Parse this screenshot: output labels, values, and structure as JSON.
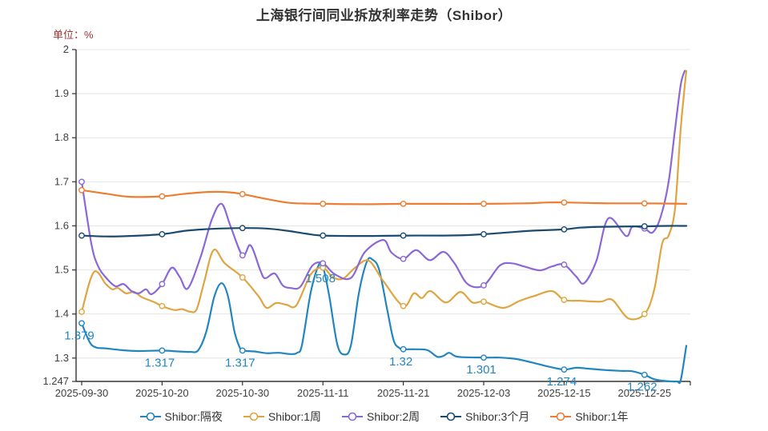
{
  "chart_data": {
    "type": "line",
    "title": "上海银行间同业拆放利率走势（Shibor）",
    "unit_label": "单位：%",
    "ylim": [
      1.247,
      2.0
    ],
    "grid": "horizontal-only",
    "legend_position": "bottom-center",
    "x_tick_labels": [
      "2025-09-30",
      "2025-10-20",
      "2025-10-30",
      "2025-11-11",
      "2025-11-21",
      "2025-12-03",
      "2025-12-15",
      "2025-12-25"
    ],
    "y_tick_labels": [
      "2",
      "1.9",
      "1.8",
      "1.7",
      "1.6",
      "1.5",
      "1.4",
      "1.3",
      "1.247"
    ],
    "y_tick_values": [
      2,
      1.9,
      1.8,
      1.7,
      1.6,
      1.5,
      1.4,
      1.3,
      1.247
    ],
    "points_x_unit": "x-axis tick index (0 = 2025-09-30 ... 7 = 2025-12-25; curves extend to 7.52)",
    "series": [
      {
        "name": "Shibor:隔夜",
        "key": "overnight",
        "color": "#2186c0",
        "tick_values": [
          1.379,
          1.317,
          1.317,
          1.508,
          1.32,
          1.301,
          1.274,
          1.262
        ],
        "point_labels": [
          "1.379",
          "1.317",
          "1.317",
          "1.508",
          "1.32",
          "1.301",
          "1.274",
          "1.262"
        ],
        "points": [
          [
            0,
            1.379
          ],
          [
            0.1,
            1.336
          ],
          [
            0.18,
            1.324
          ],
          [
            0.3,
            1.322
          ],
          [
            0.5,
            1.318
          ],
          [
            0.7,
            1.316
          ],
          [
            1,
            1.317
          ],
          [
            1.2,
            1.315
          ],
          [
            1.35,
            1.314
          ],
          [
            1.45,
            1.318
          ],
          [
            1.55,
            1.36
          ],
          [
            1.65,
            1.44
          ],
          [
            1.74,
            1.47
          ],
          [
            1.82,
            1.44
          ],
          [
            1.9,
            1.36
          ],
          [
            1.97,
            1.322
          ],
          [
            2,
            1.317
          ],
          [
            2.15,
            1.315
          ],
          [
            2.3,
            1.311
          ],
          [
            2.45,
            1.312
          ],
          [
            2.6,
            1.309
          ],
          [
            2.68,
            1.312
          ],
          [
            2.74,
            1.33
          ],
          [
            2.85,
            1.45
          ],
          [
            2.95,
            1.512
          ],
          [
            3,
            1.508
          ],
          [
            3.08,
            1.44
          ],
          [
            3.18,
            1.33
          ],
          [
            3.27,
            1.308
          ],
          [
            3.35,
            1.33
          ],
          [
            3.45,
            1.45
          ],
          [
            3.55,
            1.52
          ],
          [
            3.62,
            1.523
          ],
          [
            3.7,
            1.5
          ],
          [
            3.8,
            1.41
          ],
          [
            3.88,
            1.34
          ],
          [
            3.95,
            1.323
          ],
          [
            4,
            1.32
          ],
          [
            4.15,
            1.32
          ],
          [
            4.3,
            1.318
          ],
          [
            4.42,
            1.303
          ],
          [
            4.5,
            1.305
          ],
          [
            4.57,
            1.312
          ],
          [
            4.65,
            1.304
          ],
          [
            4.75,
            1.302
          ],
          [
            5,
            1.301
          ],
          [
            5.2,
            1.301
          ],
          [
            5.4,
            1.298
          ],
          [
            5.6,
            1.29
          ],
          [
            5.8,
            1.281
          ],
          [
            6,
            1.274
          ],
          [
            6.15,
            1.278
          ],
          [
            6.3,
            1.276
          ],
          [
            6.5,
            1.273
          ],
          [
            6.7,
            1.271
          ],
          [
            6.85,
            1.27
          ],
          [
            7,
            1.262
          ],
          [
            7.12,
            1.252
          ],
          [
            7.25,
            1.248
          ],
          [
            7.4,
            1.247
          ],
          [
            7.45,
            1.25
          ],
          [
            7.52,
            1.328
          ]
        ]
      },
      {
        "name": "Shibor:1周",
        "key": "one-week",
        "color": "#dfa541",
        "tick_values": [
          1.405,
          1.418,
          1.483,
          1.505,
          1.418,
          1.428,
          1.432,
          1.4
        ],
        "point_labels": [],
        "points": [
          [
            0,
            1.405
          ],
          [
            0.15,
            1.495
          ],
          [
            0.3,
            1.468
          ],
          [
            0.38,
            1.456
          ],
          [
            0.45,
            1.459
          ],
          [
            0.55,
            1.447
          ],
          [
            0.65,
            1.45
          ],
          [
            0.75,
            1.438
          ],
          [
            0.9,
            1.427
          ],
          [
            1,
            1.418
          ],
          [
            1.15,
            1.409
          ],
          [
            1.25,
            1.411
          ],
          [
            1.35,
            1.405
          ],
          [
            1.43,
            1.411
          ],
          [
            1.52,
            1.47
          ],
          [
            1.64,
            1.545
          ],
          [
            1.78,
            1.515
          ],
          [
            2,
            1.483
          ],
          [
            2.2,
            1.44
          ],
          [
            2.3,
            1.414
          ],
          [
            2.42,
            1.425
          ],
          [
            2.55,
            1.421
          ],
          [
            2.67,
            1.42
          ],
          [
            2.85,
            1.49
          ],
          [
            3,
            1.505
          ],
          [
            3.12,
            1.484
          ],
          [
            3.25,
            1.48
          ],
          [
            3.4,
            1.505
          ],
          [
            3.57,
            1.521
          ],
          [
            3.75,
            1.475
          ],
          [
            4,
            1.418
          ],
          [
            4.13,
            1.447
          ],
          [
            4.23,
            1.436
          ],
          [
            4.34,
            1.452
          ],
          [
            4.53,
            1.426
          ],
          [
            4.71,
            1.45
          ],
          [
            4.86,
            1.426
          ],
          [
            5,
            1.428
          ],
          [
            5.24,
            1.414
          ],
          [
            5.45,
            1.43
          ],
          [
            5.63,
            1.441
          ],
          [
            5.85,
            1.452
          ],
          [
            6,
            1.432
          ],
          [
            6.2,
            1.43
          ],
          [
            6.45,
            1.428
          ],
          [
            6.6,
            1.432
          ],
          [
            6.8,
            1.39
          ],
          [
            7,
            1.4
          ],
          [
            7.12,
            1.454
          ],
          [
            7.22,
            1.56
          ],
          [
            7.3,
            1.578
          ],
          [
            7.38,
            1.64
          ],
          [
            7.45,
            1.82
          ],
          [
            7.52,
            1.952
          ]
        ]
      },
      {
        "name": "Shibor:2周",
        "key": "two-week",
        "color": "#8a68d6",
        "tick_values": [
          1.7,
          1.468,
          1.533,
          1.515,
          1.525,
          1.465,
          1.512,
          1.594
        ],
        "point_labels": [],
        "points": [
          [
            0,
            1.7
          ],
          [
            0.12,
            1.56
          ],
          [
            0.2,
            1.51
          ],
          [
            0.3,
            1.483
          ],
          [
            0.42,
            1.463
          ],
          [
            0.52,
            1.468
          ],
          [
            0.62,
            1.452
          ],
          [
            0.71,
            1.447
          ],
          [
            0.8,
            1.456
          ],
          [
            0.87,
            1.445
          ],
          [
            1,
            1.468
          ],
          [
            1.12,
            1.505
          ],
          [
            1.22,
            1.484
          ],
          [
            1.32,
            1.458
          ],
          [
            1.48,
            1.53
          ],
          [
            1.62,
            1.615
          ],
          [
            1.74,
            1.65
          ],
          [
            1.85,
            1.6
          ],
          [
            2,
            1.533
          ],
          [
            2.1,
            1.556
          ],
          [
            2.22,
            1.5
          ],
          [
            2.28,
            1.481
          ],
          [
            2.4,
            1.492
          ],
          [
            2.5,
            1.465
          ],
          [
            2.6,
            1.459
          ],
          [
            2.72,
            1.462
          ],
          [
            2.87,
            1.51
          ],
          [
            3,
            1.515
          ],
          [
            3.15,
            1.49
          ],
          [
            3.35,
            1.482
          ],
          [
            3.52,
            1.54
          ],
          [
            3.75,
            1.568
          ],
          [
            3.85,
            1.54
          ],
          [
            4,
            1.525
          ],
          [
            4.16,
            1.545
          ],
          [
            4.33,
            1.522
          ],
          [
            4.5,
            1.541
          ],
          [
            4.64,
            1.514
          ],
          [
            4.8,
            1.468
          ],
          [
            5,
            1.465
          ],
          [
            5.2,
            1.51
          ],
          [
            5.35,
            1.515
          ],
          [
            5.5,
            1.508
          ],
          [
            5.7,
            1.499
          ],
          [
            5.85,
            1.508
          ],
          [
            6,
            1.512
          ],
          [
            6.15,
            1.485
          ],
          [
            6.25,
            1.47
          ],
          [
            6.4,
            1.52
          ],
          [
            6.55,
            1.617
          ],
          [
            6.77,
            1.577
          ],
          [
            6.85,
            1.598
          ],
          [
            7,
            1.594
          ],
          [
            7.1,
            1.585
          ],
          [
            7.2,
            1.62
          ],
          [
            7.3,
            1.7
          ],
          [
            7.38,
            1.82
          ],
          [
            7.45,
            1.92
          ],
          [
            7.5,
            1.952
          ]
        ]
      },
      {
        "name": "Shibor:3个月",
        "key": "three-month",
        "color": "#1a4a70",
        "tick_values": [
          1.578,
          1.581,
          1.595,
          1.578,
          1.578,
          1.581,
          1.592,
          1.599
        ],
        "point_labels": [],
        "points": [
          [
            0,
            1.578
          ],
          [
            0.3,
            1.576
          ],
          [
            0.6,
            1.577
          ],
          [
            1,
            1.581
          ],
          [
            1.3,
            1.589
          ],
          [
            1.6,
            1.593
          ],
          [
            2,
            1.595
          ],
          [
            2.3,
            1.594
          ],
          [
            2.55,
            1.589
          ],
          [
            2.8,
            1.582
          ],
          [
            3,
            1.578
          ],
          [
            3.5,
            1.577
          ],
          [
            4,
            1.578
          ],
          [
            4.5,
            1.578
          ],
          [
            4.8,
            1.579
          ],
          [
            5,
            1.581
          ],
          [
            5.3,
            1.585
          ],
          [
            5.6,
            1.589
          ],
          [
            6,
            1.592
          ],
          [
            6.2,
            1.596
          ],
          [
            6.5,
            1.598
          ],
          [
            7,
            1.599
          ],
          [
            7.3,
            1.6
          ],
          [
            7.52,
            1.6
          ]
        ]
      },
      {
        "name": "Shibor:1年",
        "key": "one-year",
        "color": "#ed7d31",
        "tick_values": [
          1.681,
          1.667,
          1.672,
          1.65,
          1.65,
          1.65,
          1.653,
          1.651
        ],
        "point_labels": [],
        "points": [
          [
            0,
            1.681
          ],
          [
            0.3,
            1.673
          ],
          [
            0.6,
            1.666
          ],
          [
            1,
            1.667
          ],
          [
            1.3,
            1.673
          ],
          [
            1.6,
            1.677
          ],
          [
            1.85,
            1.676
          ],
          [
            2,
            1.672
          ],
          [
            2.3,
            1.661
          ],
          [
            2.6,
            1.652
          ],
          [
            3,
            1.65
          ],
          [
            3.5,
            1.649
          ],
          [
            4,
            1.65
          ],
          [
            4.5,
            1.65
          ],
          [
            5,
            1.65
          ],
          [
            5.5,
            1.651
          ],
          [
            5.8,
            1.653
          ],
          [
            6,
            1.653
          ],
          [
            6.3,
            1.652
          ],
          [
            6.6,
            1.651
          ],
          [
            7,
            1.651
          ],
          [
            7.52,
            1.65
          ]
        ]
      }
    ],
    "colors": {
      "axis": "#333333",
      "grid": "#e4e4e4",
      "tick_label": "#404040",
      "title": "#333333",
      "unit_label": "#993333",
      "data_label": "#2186c0"
    }
  }
}
